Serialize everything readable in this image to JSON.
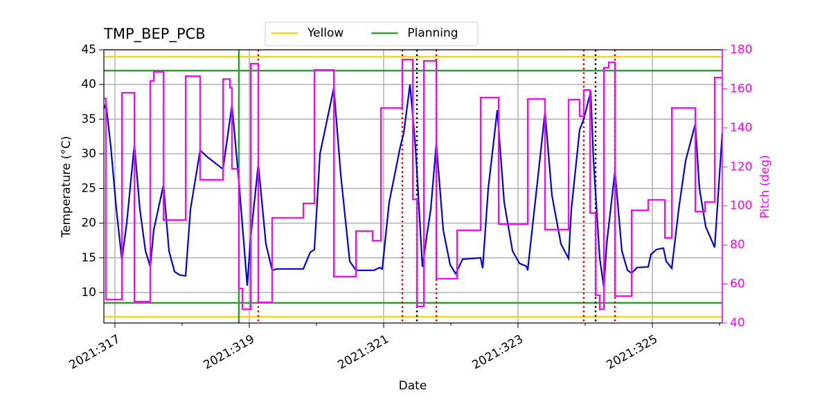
{
  "chart_data": {
    "type": "line",
    "title": "TMP_BEP_PCB",
    "xlabel": "Date",
    "ylabel": "Temperature (°C)",
    "y2label": "Pitch (deg)",
    "xlim": [
      316.835,
      326.041
    ],
    "ylim": [
      5.6,
      45
    ],
    "y2lim": [
      40,
      180
    ],
    "xticks": [
      {
        "value": 317,
        "label": "2021:317"
      },
      {
        "value": 319,
        "label": "2021:319"
      },
      {
        "value": 321,
        "label": "2021:321"
      },
      {
        "value": 323,
        "label": "2021:323"
      },
      {
        "value": 325,
        "label": "2021:325"
      }
    ],
    "xminorticks": [
      318,
      320,
      322,
      324,
      326
    ],
    "yticks": [
      10,
      15,
      20,
      25,
      30,
      35,
      40,
      45
    ],
    "y2ticks": [
      40,
      60,
      80,
      100,
      120,
      140,
      160,
      180
    ],
    "grid": true,
    "legend": "top-center",
    "y2color": "#ff00ff",
    "series": [
      {
        "color": "#0000dd",
        "x": [
          316.835,
          316.866,
          316.938,
          317.021,
          317.103,
          317.175,
          317.289,
          317.371,
          317.454,
          317.526,
          317.577,
          317.722,
          317.804,
          317.887,
          317.969,
          318.052,
          318.124,
          318.268,
          318.381,
          318.608,
          318.742,
          318.845,
          318.969,
          319.021,
          319.134,
          319.247,
          319.34,
          319.412,
          319.804,
          319.907,
          319.969,
          320.052,
          320.258,
          320.361,
          320.495,
          320.588,
          320.856,
          320.938,
          320.979,
          321.082,
          321.247,
          321.299,
          321.392,
          321.474,
          321.577,
          321.639,
          321.701,
          321.784,
          321.887,
          321.99,
          322.072,
          322.175,
          322.443,
          322.474,
          322.557,
          322.691,
          322.794,
          322.918,
          323.021,
          323.124,
          323.144,
          323.278,
          323.402,
          323.505,
          323.639,
          323.753,
          323.794,
          323.918,
          323.979,
          324.082,
          324.124,
          324.216,
          324.278,
          324.32,
          324.443,
          324.546,
          324.629,
          324.691,
          324.773,
          324.938,
          324.979,
          325.062,
          325.165,
          325.206,
          325.289,
          325.392,
          325.495,
          325.639,
          325.701,
          325.794,
          325.928,
          326.041
        ],
        "values": [
          36.5,
          37.2,
          31,
          22,
          14.7,
          20,
          31.3,
          22,
          16,
          13.7,
          19,
          25.5,
          16,
          13,
          12.5,
          12.4,
          22,
          30.5,
          29.5,
          27.8,
          37,
          26,
          11,
          18,
          28.5,
          17,
          13.2,
          13.4,
          13.4,
          15.8,
          16.2,
          30,
          39.5,
          27,
          14.5,
          13.2,
          13.2,
          13.6,
          13.4,
          23,
          31,
          33,
          40,
          31,
          13.7,
          18,
          22,
          31.5,
          19,
          14,
          12.7,
          14.8,
          15,
          13.5,
          25,
          36.3,
          23,
          16,
          14.2,
          13.8,
          13.2,
          25,
          36,
          24,
          17,
          14.9,
          22,
          33.5,
          35,
          39,
          29,
          15,
          10.7,
          17,
          27.5,
          16,
          13.2,
          12.8,
          13.6,
          13.7,
          15.5,
          16.2,
          16.4,
          14.5,
          13.5,
          22,
          29,
          34.3,
          25,
          19.5,
          16.5,
          33
        ]
      },
      {
        "color": "#ff00ff",
        "axis": "y2",
        "drawstyle": "steps-post",
        "x": [
          316.835,
          316.866,
          317.103,
          317.289,
          317.526,
          317.577,
          317.722,
          318.052,
          318.268,
          318.608,
          318.711,
          318.742,
          318.845,
          318.897,
          319.021,
          319.134,
          319.34,
          319.804,
          319.969,
          320.258,
          320.588,
          320.835,
          320.959,
          321.278,
          321.433,
          321.495,
          321.598,
          321.784,
          322.093,
          322.443,
          322.711,
          323.144,
          323.402,
          323.753,
          323.918,
          323.979,
          324.072,
          324.155,
          324.216,
          324.278,
          324.351,
          324.443,
          324.691,
          324.938,
          325.186,
          325.289,
          325.639,
          325.784,
          325.928
        ],
        "values": [
          155,
          52,
          158,
          51,
          164,
          168.7,
          92.8,
          166.5,
          113.4,
          165,
          160.5,
          119,
          57.7,
          47,
          172.9,
          50.6,
          93.9,
          101.3,
          169.7,
          63.8,
          87.1,
          82.2,
          150.2,
          175,
          103.4,
          48.5,
          174.3,
          62.7,
          87.5,
          155.5,
          90.7,
          154.8,
          87.9,
          154.5,
          146,
          159.4,
          96.4,
          54.2,
          47,
          170.8,
          173.6,
          53.8,
          97.8,
          103.1,
          83.6,
          150.2,
          97.1,
          102,
          165.8
        ]
      }
    ],
    "hlines": [
      {
        "name": "Yellow",
        "color": "#ffd700",
        "values": [
          44,
          6.5
        ]
      },
      {
        "name": "Planning",
        "color": "#2ca02c",
        "values": [
          42,
          8.5
        ]
      }
    ],
    "vlines": [
      {
        "color": "#2ca02c",
        "dashed": false,
        "x": [
          318.845
        ]
      },
      {
        "color": "#dd0000",
        "dashed": true,
        "x": [
          319.134,
          321.278,
          321.784,
          323.979,
          324.443
        ]
      },
      {
        "color": "#000000",
        "dashed": true,
        "x": [
          321.495,
          324.155
        ]
      }
    ]
  }
}
